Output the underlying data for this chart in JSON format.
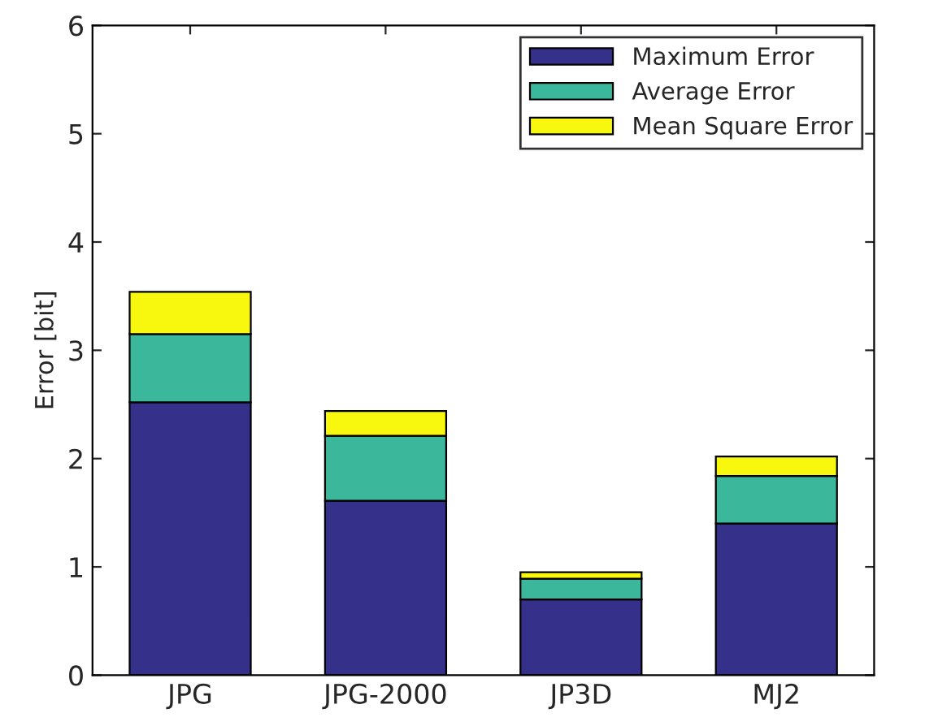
{
  "chart_data": {
    "type": "bar",
    "stacked": true,
    "categories": [
      "JPG",
      "JPG-2000",
      "JP3D",
      "MJ2"
    ],
    "series": [
      {
        "name": "Maximum Error",
        "color": "#35308a",
        "values": [
          2.52,
          1.61,
          0.7,
          1.4
        ]
      },
      {
        "name": "Average Error",
        "color": "#3bb89c",
        "values": [
          0.63,
          0.6,
          0.19,
          0.44
        ]
      },
      {
        "name": "Mean Square Error",
        "color": "#f8f80e",
        "values": [
          0.39,
          0.23,
          0.06,
          0.18
        ]
      }
    ],
    "ylabel": "Error [bit]",
    "ylim": [
      0,
      6
    ],
    "yticks": [
      0,
      1,
      2,
      3,
      4,
      5,
      6
    ],
    "legend": "top right",
    "grid": false
  }
}
